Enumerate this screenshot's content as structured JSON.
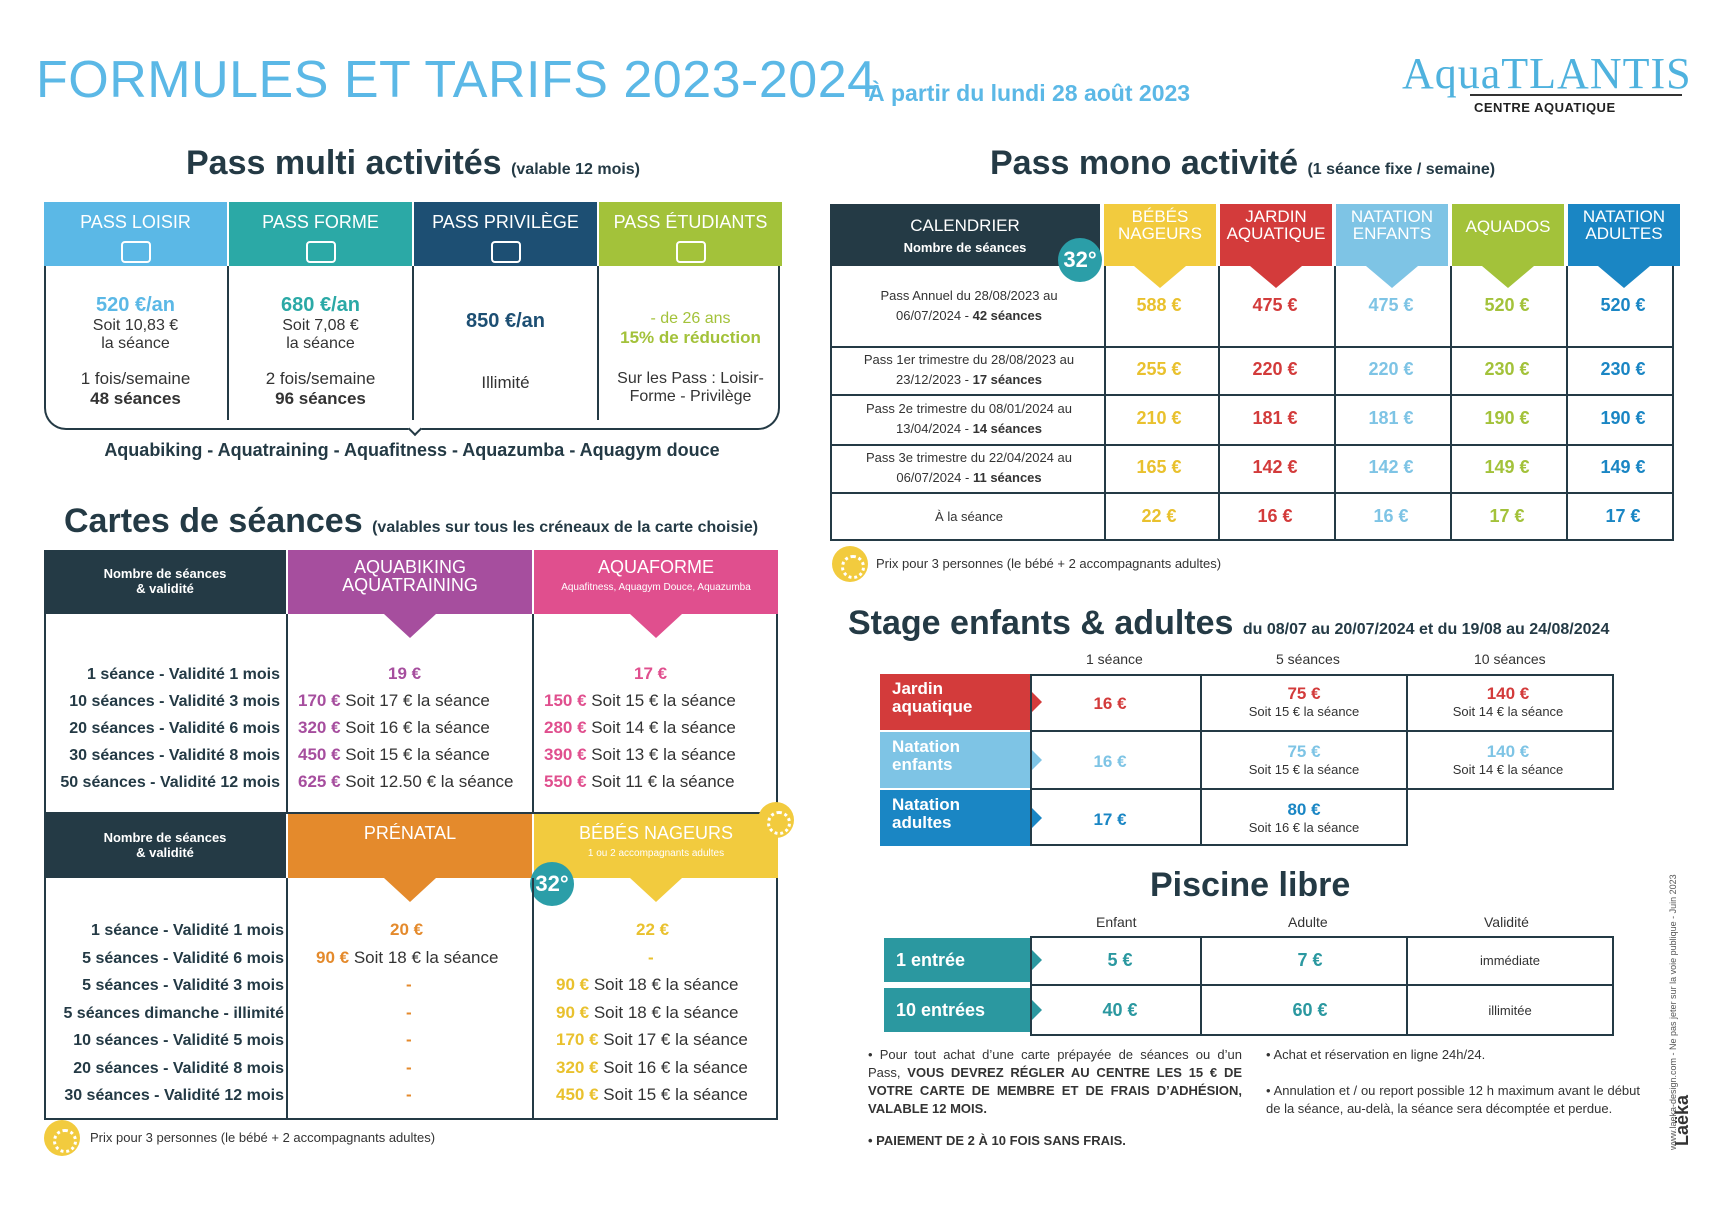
{
  "header": {
    "title": "FORMULES ET TARIFS 2023-2024",
    "subtitle": "À partir du lundi 28 août 2023",
    "logo_word": "AquaTLANTIS",
    "logo_sub": "CENTRE AQUATIQUE"
  },
  "multi": {
    "title": "Pass multi activités",
    "title_small": "(valable 12 mois)",
    "cols": [
      {
        "name": "PASS LOISIR",
        "color": "#5bb8e6",
        "price": "520 €/an",
        "soit": "Soit 10,83 €",
        "seance": "la séance",
        "freq": "1 fois/semaine",
        "count": "48 séances"
      },
      {
        "name": "PASS FORME",
        "color": "#2ba9a6",
        "price": "680 €/an",
        "soit": "Soit 7,08 €",
        "seance": "la séance",
        "freq": "2 fois/semaine",
        "count": "96 séances"
      },
      {
        "name": "PASS PRIVILÈGE",
        "color": "#1d4f73",
        "price": "850 €/an",
        "extra": "Illimité"
      },
      {
        "name": "PASS ÉTUDIANTS",
        "color": "#a3c23a",
        "l1": "- de 26 ans",
        "l2": "15% de réduction",
        "l3": "Sur les Pass : Loisir-",
        "l4": "Forme - Privilège"
      }
    ],
    "activities": "Aquabiking - Aquatraining - Aquafitness - Aquazumba - Aquagym douce"
  },
  "cartes": {
    "title": "Cartes de séances",
    "title_small": "(valables sur tous les créneaux de la carte choisie)",
    "header_dark": [
      "Nombre de séances",
      "& validité"
    ],
    "aquabiking": {
      "l1": "AQUABIKING",
      "l2": "AQUATRAINING",
      "color": "#a64e9e"
    },
    "aquaforme": {
      "l1": "AQUAFORME",
      "l2": "Aquafitness, Aquagym Douce, Aquazumba",
      "color": "#e04f8e"
    },
    "rows1": [
      {
        "label": "1 séance - Validité 1 mois",
        "a": "19 €",
        "a_soit": "",
        "b": "17 €",
        "b_soit": ""
      },
      {
        "label": "10 séances - Validité 3 mois",
        "a": "170 €",
        "a_soit": "Soit 17 € la séance",
        "b": "150 €",
        "b_soit": "Soit 15 € la séance"
      },
      {
        "label": "20 séances - Validité 6 mois",
        "a": "320 €",
        "a_soit": "Soit 16 € la séance",
        "b": "280 €",
        "b_soit": "Soit 14 € la séance"
      },
      {
        "label": "30 séances - Validité 8 mois",
        "a": "450 €",
        "a_soit": "Soit 15 € la séance",
        "b": "390 €",
        "b_soit": "Soit 13 € la séance"
      },
      {
        "label": "50 séances - Validité 12 mois",
        "a": "625 €",
        "a_soit": "Soit 12.50 € la séance",
        "b": "550 €",
        "b_soit": "Soit 11 € la séance"
      }
    ],
    "prenatal": {
      "l1": "PRÉNATAL",
      "color": "#e48a2c"
    },
    "bebes": {
      "l1": "BÉBÉS NAGEURS",
      "l2": "1 ou 2 accompagnants adultes",
      "color": "#f2cb3e"
    },
    "badge": "32°",
    "rows2": [
      {
        "label": "1 séance - Validité 1 mois",
        "a": "20 €",
        "a_soit": "",
        "b": "22 €",
        "b_soit": ""
      },
      {
        "label": "5 séances - Validité 6 mois",
        "a": "90 €",
        "a_soit": "Soit 18 € la séance",
        "b": "-",
        "b_soit": ""
      },
      {
        "label": "5 séances - Validité 3 mois",
        "a": "-",
        "a_soit": "",
        "b": "90 €",
        "b_soit": "Soit 18 € la séance"
      },
      {
        "label": "5 séances dimanche - illimité",
        "a": "-",
        "a_soit": "",
        "b": "90 €",
        "b_soit": "Soit 18 € la séance"
      },
      {
        "label": "10 séances - Validité 5 mois",
        "a": "-",
        "a_soit": "",
        "b": "170 €",
        "b_soit": "Soit 17 € la séance"
      },
      {
        "label": "20 séances - Validité 8 mois",
        "a": "-",
        "a_soit": "",
        "b": "320 €",
        "b_soit": "Soit 16 € la séance"
      },
      {
        "label": "30 séances - Validité 12 mois",
        "a": "-",
        "a_soit": "",
        "b": "450 €",
        "b_soit": "Soit 15 € la séance"
      }
    ],
    "note": "Prix pour 3 personnes (le bébé + 2 accompagnants adultes)"
  },
  "mono": {
    "title": "Pass mono activité",
    "title_small": "(1 séance fixe / semaine)",
    "cal_l1": "CALENDRIER",
    "cal_l2": "Nombre de séances",
    "badge": "32°",
    "heads": [
      {
        "l1": "BÉBÉS",
        "l2": "NAGEURS",
        "color": "#f2cb3e"
      },
      {
        "l1": "JARDIN",
        "l2": "AQUATIQUE",
        "color": "#d33b3b"
      },
      {
        "l1": "NATATION",
        "l2": "ENFANTS",
        "color": "#7ec4e5"
      },
      {
        "l1": "AQUADOS",
        "l2": "",
        "color": "#a3c23a"
      },
      {
        "l1": "NATATION",
        "l2": "ADULTES",
        "color": "#1a86c4"
      }
    ],
    "rows": [
      {
        "l1": "Pass Annuel du 28/08/2023 au",
        "l2a": "06/07/2024 - ",
        "l2b": "42 séances",
        "v": [
          "588 €",
          "475 €",
          "475 €",
          "520 €",
          "520 €"
        ]
      },
      {
        "l1": "Pass 1er trimestre du 28/08/2023 au",
        "l2a": "23/12/2023 - ",
        "l2b": "17 séances",
        "v": [
          "255 €",
          "220 €",
          "220 €",
          "230 €",
          "230 €"
        ]
      },
      {
        "l1": "Pass 2e trimestre du 08/01/2024 au",
        "l2a": "13/04/2024 - ",
        "l2b": "14 séances",
        "v": [
          "210 €",
          "181 €",
          "181 €",
          "190 €",
          "190 €"
        ]
      },
      {
        "l1": "Pass 3e trimestre du 22/04/2024 au",
        "l2a": "06/07/2024 - ",
        "l2b": "11 séances",
        "v": [
          "165 €",
          "142 €",
          "142 €",
          "149 €",
          "149 €"
        ]
      },
      {
        "l1": "À la séance",
        "l2a": "",
        "l2b": "",
        "v": [
          "22 €",
          "16 €",
          "16 €",
          "17 €",
          "17 €"
        ]
      }
    ],
    "note": "Prix pour 3 personnes (le bébé + 2 accompagnants adultes)"
  },
  "stage": {
    "title": "Stage enfants & adultes",
    "title_small": "du 08/07 au 20/07/2024 et du 19/08 au 24/08/2024",
    "cols": [
      "1 séance",
      "5 séances",
      "10 séances"
    ],
    "rows": [
      {
        "l1": "Jardin",
        "l2": "aquatique",
        "color": "#d33b3b",
        "v1": "16 €",
        "v5": "75 €",
        "s5": "Soit 15 € la séance",
        "v10": "140 €",
        "s10": "Soit 14 € la séance"
      },
      {
        "l1": "Natation",
        "l2": "enfants",
        "color": "#7ec4e5",
        "v1": "16 €",
        "v5": "75 €",
        "s5": "Soit 15 € la séance",
        "v10": "140 €",
        "s10": "Soit 14 € la séance"
      },
      {
        "l1": "Natation",
        "l2": "adultes",
        "color": "#1a86c4",
        "v1": "17 €",
        "v5": "80 €",
        "s5": "Soit 16 € la séance",
        "v10": "",
        "s10": ""
      }
    ]
  },
  "piscine": {
    "title": "Piscine libre",
    "cols": [
      "Enfant",
      "Adulte",
      "Validité"
    ],
    "rows": [
      {
        "label": "1 entrée",
        "enfant": "5 €",
        "adulte": "7 €",
        "validite": "immédiate"
      },
      {
        "label": "10 entrées",
        "enfant": "40 €",
        "adulte": "60 €",
        "validite": "illimitée"
      }
    ]
  },
  "bullets": {
    "b1a": "Pour tout achat d’une carte prépayée de séances ou d’un Pass, ",
    "b1b": "VOUS DEVREZ RÉGLER AU CENTRE LES 15 € DE VOTRE CARTE DE MEMBRE ET DE FRAIS D’ADHÉSION, VALABLE 12 MOIS.",
    "b2": "PAIEMENT DE 2 À 10 FOIS SANS FRAIS.",
    "b3": "Achat et réservation en ligne 24h/24.",
    "b4": "Annulation et / ou report possible 12 h maximum avant le début de la séance, au-delà, la séance sera décomptée et perdue."
  },
  "footer": {
    "credit": "www.laeka-design.com - Ne pas jeter sur la voie publique - Juin 2023",
    "brand": "Laëka"
  }
}
